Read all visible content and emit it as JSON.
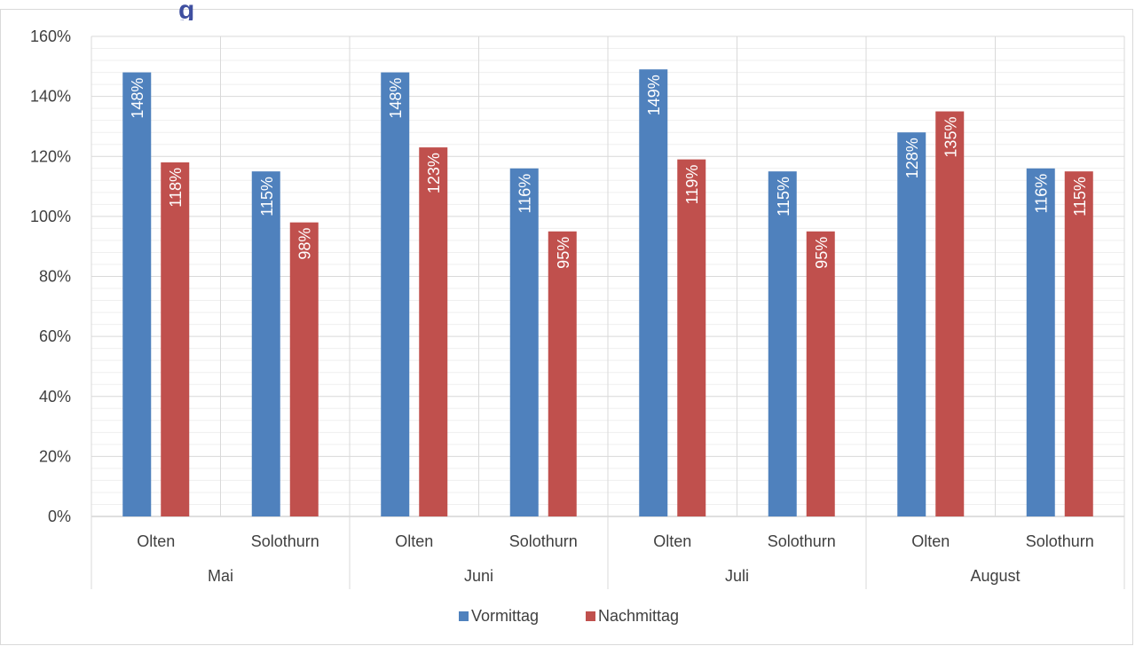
{
  "title_fragment": "g",
  "chart_data": {
    "type": "bar",
    "title": "",
    "xlabel": "",
    "ylabel": "",
    "ylim": [
      0,
      160
    ],
    "yticks": [
      "0%",
      "20%",
      "40%",
      "60%",
      "80%",
      "100%",
      "120%",
      "140%",
      "160%"
    ],
    "grid": true,
    "legend_position": "bottom",
    "groups": [
      "Mai",
      "Juni",
      "Juli",
      "August"
    ],
    "categories": [
      "Olten",
      "Solothurn",
      "Olten",
      "Solothurn",
      "Olten",
      "Solothurn",
      "Olten",
      "Solothurn"
    ],
    "series": [
      {
        "name": "Vormittag",
        "color": "#4f81bd",
        "values": [
          148,
          115,
          148,
          116,
          149,
          115,
          128,
          116
        ],
        "labels": [
          "148%",
          "115%",
          "148%",
          "116%",
          "149%",
          "115%",
          "128%",
          "116%"
        ]
      },
      {
        "name": "Nachmittag",
        "color": "#c0504d",
        "values": [
          118,
          98,
          123,
          95,
          119,
          95,
          135,
          115
        ],
        "labels": [
          "118%",
          "98%",
          "123%",
          "95%",
          "119%",
          "95%",
          "135%",
          "115%"
        ]
      }
    ]
  }
}
